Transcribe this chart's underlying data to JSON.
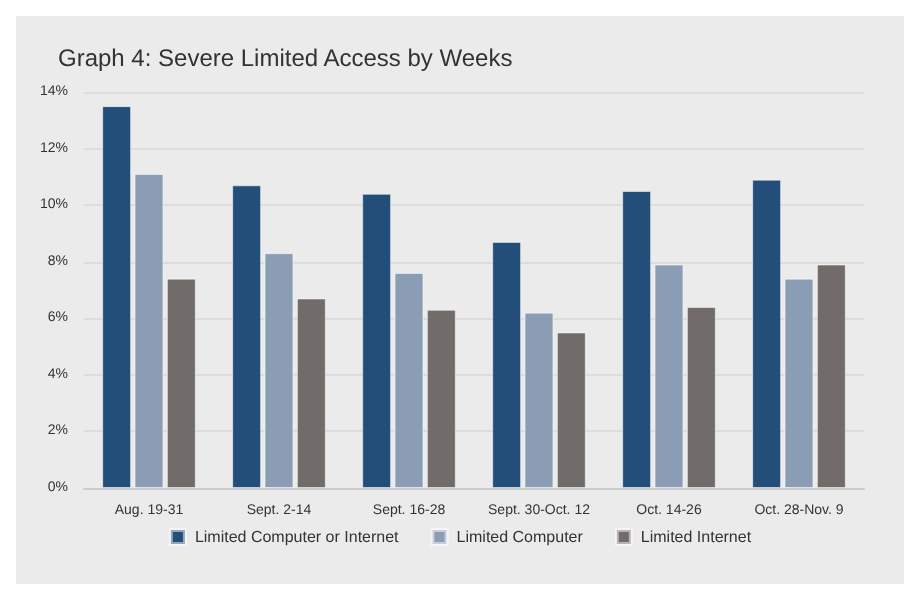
{
  "chart_data": {
    "type": "bar",
    "title": "Graph 4: Severe Limited Access by Weeks",
    "categories": [
      "Aug. 19-31",
      "Sept. 2-14",
      "Sept. 16-28",
      "Sept. 30-Oct. 12",
      "Oct. 14-26",
      "Oct. 28-Nov. 9"
    ],
    "series": [
      {
        "name": "Limited Computer or Internet",
        "color": "#234e7a",
        "values": [
          13.5,
          10.7,
          10.4,
          8.7,
          10.5,
          10.9
        ]
      },
      {
        "name": "Limited Computer",
        "color": "#8a9db5",
        "values": [
          11.1,
          8.3,
          7.6,
          6.2,
          7.9,
          7.4
        ]
      },
      {
        "name": "Limited Internet",
        "color": "#716c6a",
        "values": [
          7.4,
          6.7,
          6.3,
          5.5,
          6.4,
          7.9
        ]
      }
    ],
    "ylim": [
      0,
      14
    ],
    "yticks": [
      {
        "value": 0,
        "label": "0%"
      },
      {
        "value": 2,
        "label": "2%"
      },
      {
        "value": 4,
        "label": "4%"
      },
      {
        "value": 6,
        "label": "6%"
      },
      {
        "value": 8,
        "label": "8%"
      },
      {
        "value": 10,
        "label": "10%"
      },
      {
        "value": 12,
        "label": "12%"
      },
      {
        "value": 14,
        "label": "14%"
      }
    ],
    "grid": "y",
    "legend": "bottom"
  }
}
